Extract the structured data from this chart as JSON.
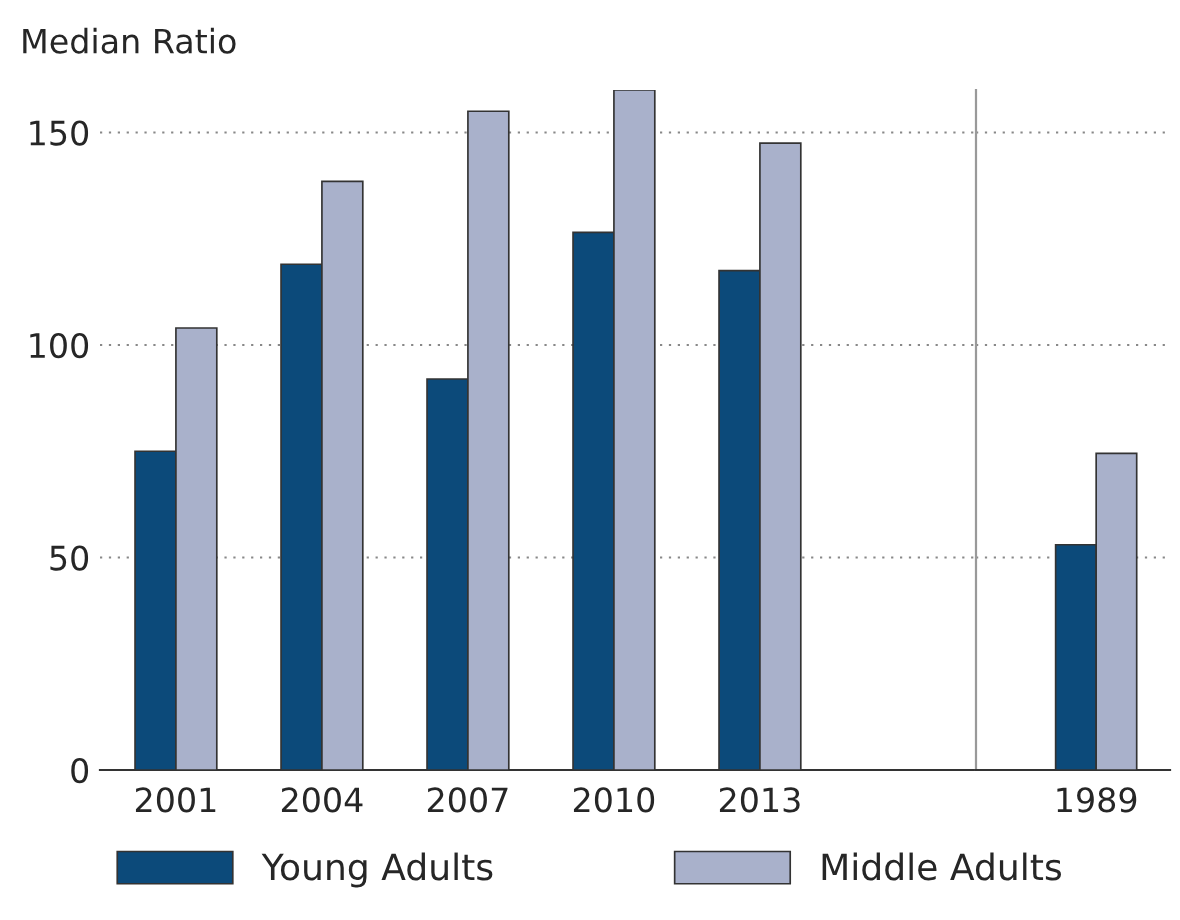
{
  "chart_data": [
    {
      "type": "bar",
      "title": "Median Ratio",
      "categories": [
        "2001",
        "2004",
        "2007",
        "2010",
        "2013"
      ],
      "series": [
        {
          "name": "Young Adults",
          "color": "#0c4a7a",
          "values": [
            75,
            119,
            92,
            126.5,
            117.5
          ]
        },
        {
          "name": "Middle Adults",
          "color": "#a9b1cb",
          "values": [
            104,
            138.5,
            155,
            160,
            147.5
          ]
        }
      ],
      "ylim": [
        0,
        160
      ],
      "yticks": [
        0,
        50,
        100,
        150
      ],
      "grid": "y",
      "legend": "bottom"
    },
    {
      "type": "bar",
      "categories": [
        "1989"
      ],
      "series": [
        {
          "color": "#0c4a7a",
          "values": [
            53
          ]
        },
        {
          "color": "#a9b1cb",
          "values": [
            74.5
          ]
        }
      ],
      "ylim": [
        0,
        160
      ],
      "yticks": [
        0,
        50,
        100,
        150
      ],
      "grid": "y",
      "tick_labels": "x"
    }
  ]
}
